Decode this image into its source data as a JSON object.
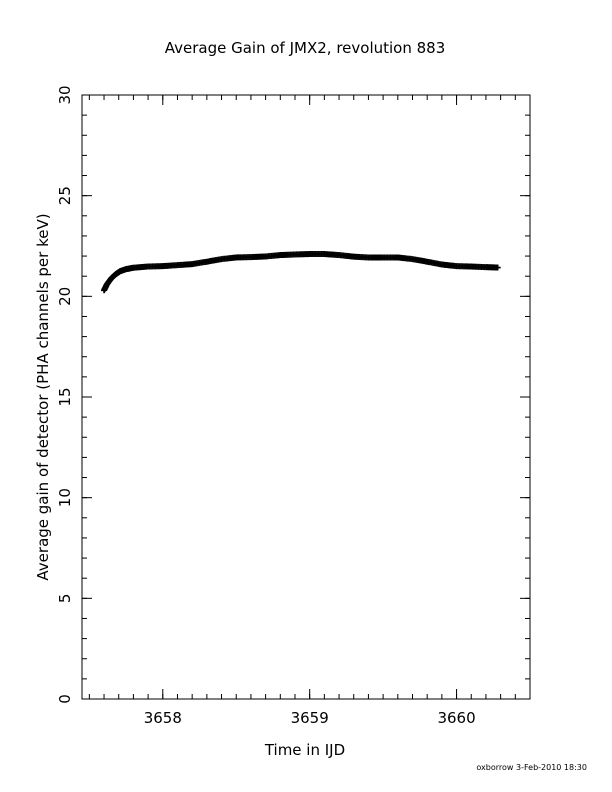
{
  "chart_data": {
    "type": "scatter",
    "title": "Average Gain of JMX2, revolution 883",
    "xlabel": "Time in IJD",
    "ylabel": "Average gain of detector (PHA channels per keV)",
    "xlim": [
      3657.45,
      3660.5
    ],
    "ylim": [
      0,
      30
    ],
    "x_ticks": [
      "3658",
      "3659",
      "3660"
    ],
    "x_tick_values": [
      3658,
      3659,
      3660
    ],
    "y_ticks": [
      "0",
      "5",
      "10",
      "15",
      "20",
      "25",
      "30"
    ],
    "y_tick_values": [
      0,
      5,
      10,
      15,
      20,
      25,
      30
    ],
    "x_minor_step": 0.1,
    "y_minor_step": 1,
    "marker": "plus",
    "grid": false,
    "series": [
      {
        "x": [
          3657.6,
          3657.62,
          3657.65,
          3657.68,
          3657.71,
          3657.75,
          3657.8,
          3657.9,
          3658.0,
          3658.1,
          3658.2,
          3658.3,
          3658.4,
          3658.5,
          3658.6,
          3658.7,
          3658.8,
          3658.9,
          3659.0,
          3659.1,
          3659.2,
          3659.3,
          3659.4,
          3659.5,
          3659.6,
          3659.7,
          3659.8,
          3659.9,
          3660.0,
          3660.1,
          3660.2,
          3660.28
        ],
        "y": [
          20.3,
          20.6,
          20.9,
          21.1,
          21.25,
          21.35,
          21.42,
          21.48,
          21.5,
          21.55,
          21.6,
          21.72,
          21.85,
          21.93,
          21.95,
          21.98,
          22.05,
          22.08,
          22.1,
          22.1,
          22.05,
          21.97,
          21.93,
          21.93,
          21.93,
          21.85,
          21.72,
          21.58,
          21.5,
          21.48,
          21.45,
          21.43
        ]
      }
    ]
  },
  "footer": "oxborrow  3-Feb-2010 18:30"
}
